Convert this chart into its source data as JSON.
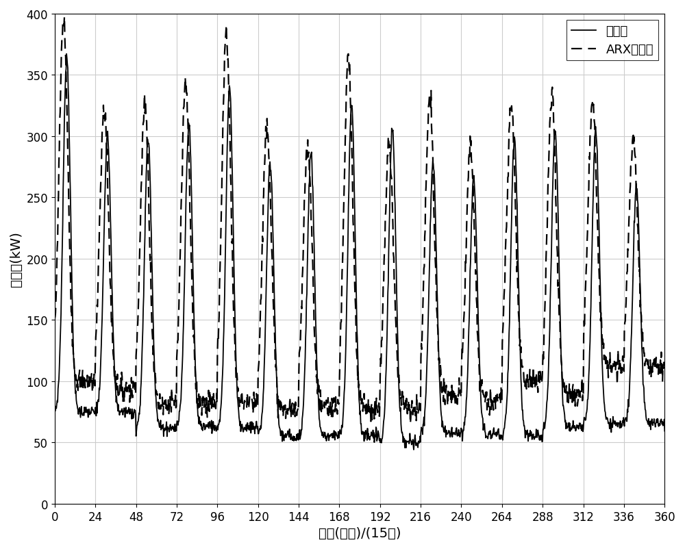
{
  "title": "",
  "xlabel": "时间(小时)/(15天)",
  "ylabel": "冷负荷(kW)",
  "xlim": [
    0,
    360
  ],
  "ylim": [
    0,
    400
  ],
  "xticks": [
    0,
    24,
    48,
    72,
    96,
    120,
    144,
    168,
    192,
    216,
    240,
    264,
    288,
    312,
    336,
    360
  ],
  "yticks": [
    0,
    50,
    100,
    150,
    200,
    250,
    300,
    350,
    400
  ],
  "legend_solid": "实测值",
  "legend_dashed": "ARX预测值",
  "bg_color": "#ffffff",
  "grid_color": "#cccccc",
  "line_color": "#000000",
  "days": 15,
  "day_peak_actual": [
    365,
    300,
    298,
    310,
    340,
    276,
    285,
    326,
    305,
    280,
    265,
    297,
    305,
    305,
    258
  ],
  "day_peak_arx": [
    395,
    322,
    328,
    345,
    383,
    311,
    293,
    360,
    296,
    330,
    293,
    323,
    333,
    328,
    299
  ],
  "day_trough_actual": [
    75,
    75,
    62,
    63,
    62,
    55,
    55,
    55,
    50,
    58,
    57,
    56,
    62,
    65,
    66
  ],
  "day_trough_arx": [
    100,
    94,
    82,
    82,
    82,
    76,
    79,
    79,
    79,
    90,
    83,
    101,
    89,
    113,
    113
  ],
  "day_base_actual": [
    75,
    75,
    62,
    63,
    62,
    55,
    55,
    55,
    50,
    58,
    57,
    56,
    62,
    65,
    66
  ],
  "peak_pos_actual": [
    0.3,
    0.3,
    0.3,
    0.3,
    0.3,
    0.3,
    0.3,
    0.3,
    0.3,
    0.3,
    0.3,
    0.3,
    0.3,
    0.3,
    0.3
  ],
  "peak_pos_arx": [
    0.22,
    0.22,
    0.22,
    0.22,
    0.22,
    0.22,
    0.22,
    0.22,
    0.22,
    0.22,
    0.22,
    0.22,
    0.22,
    0.22,
    0.22
  ],
  "n_per_day": 96
}
